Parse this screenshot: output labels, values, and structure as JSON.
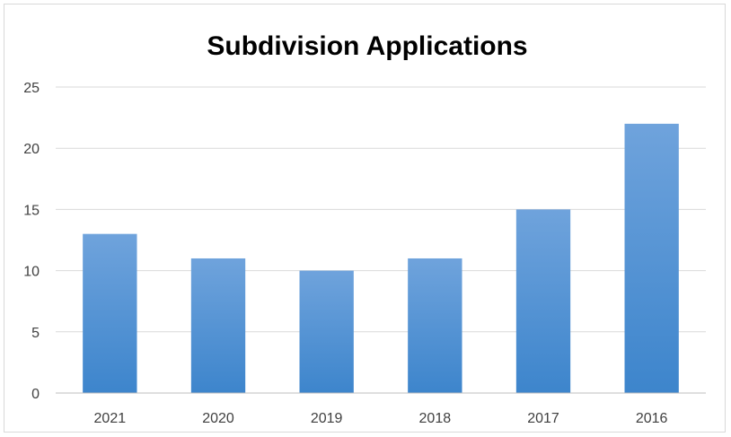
{
  "chart_data": {
    "type": "bar",
    "title": "Subdivision Applications",
    "categories": [
      "2021",
      "2020",
      "2019",
      "2018",
      "2017",
      "2016"
    ],
    "values": [
      13,
      11,
      10,
      11,
      15,
      22
    ],
    "xlabel": "",
    "ylabel": "",
    "ylim": [
      0,
      25
    ],
    "yticks": [
      "0",
      "5",
      "10",
      "15",
      "20",
      "25"
    ],
    "grid": true,
    "legend": "none",
    "colors": {
      "bar_top": "#6fa3dc",
      "bar_bottom": "#3d85cc",
      "grid": "#d9d9d9",
      "axis": "#bfbfbf"
    }
  }
}
